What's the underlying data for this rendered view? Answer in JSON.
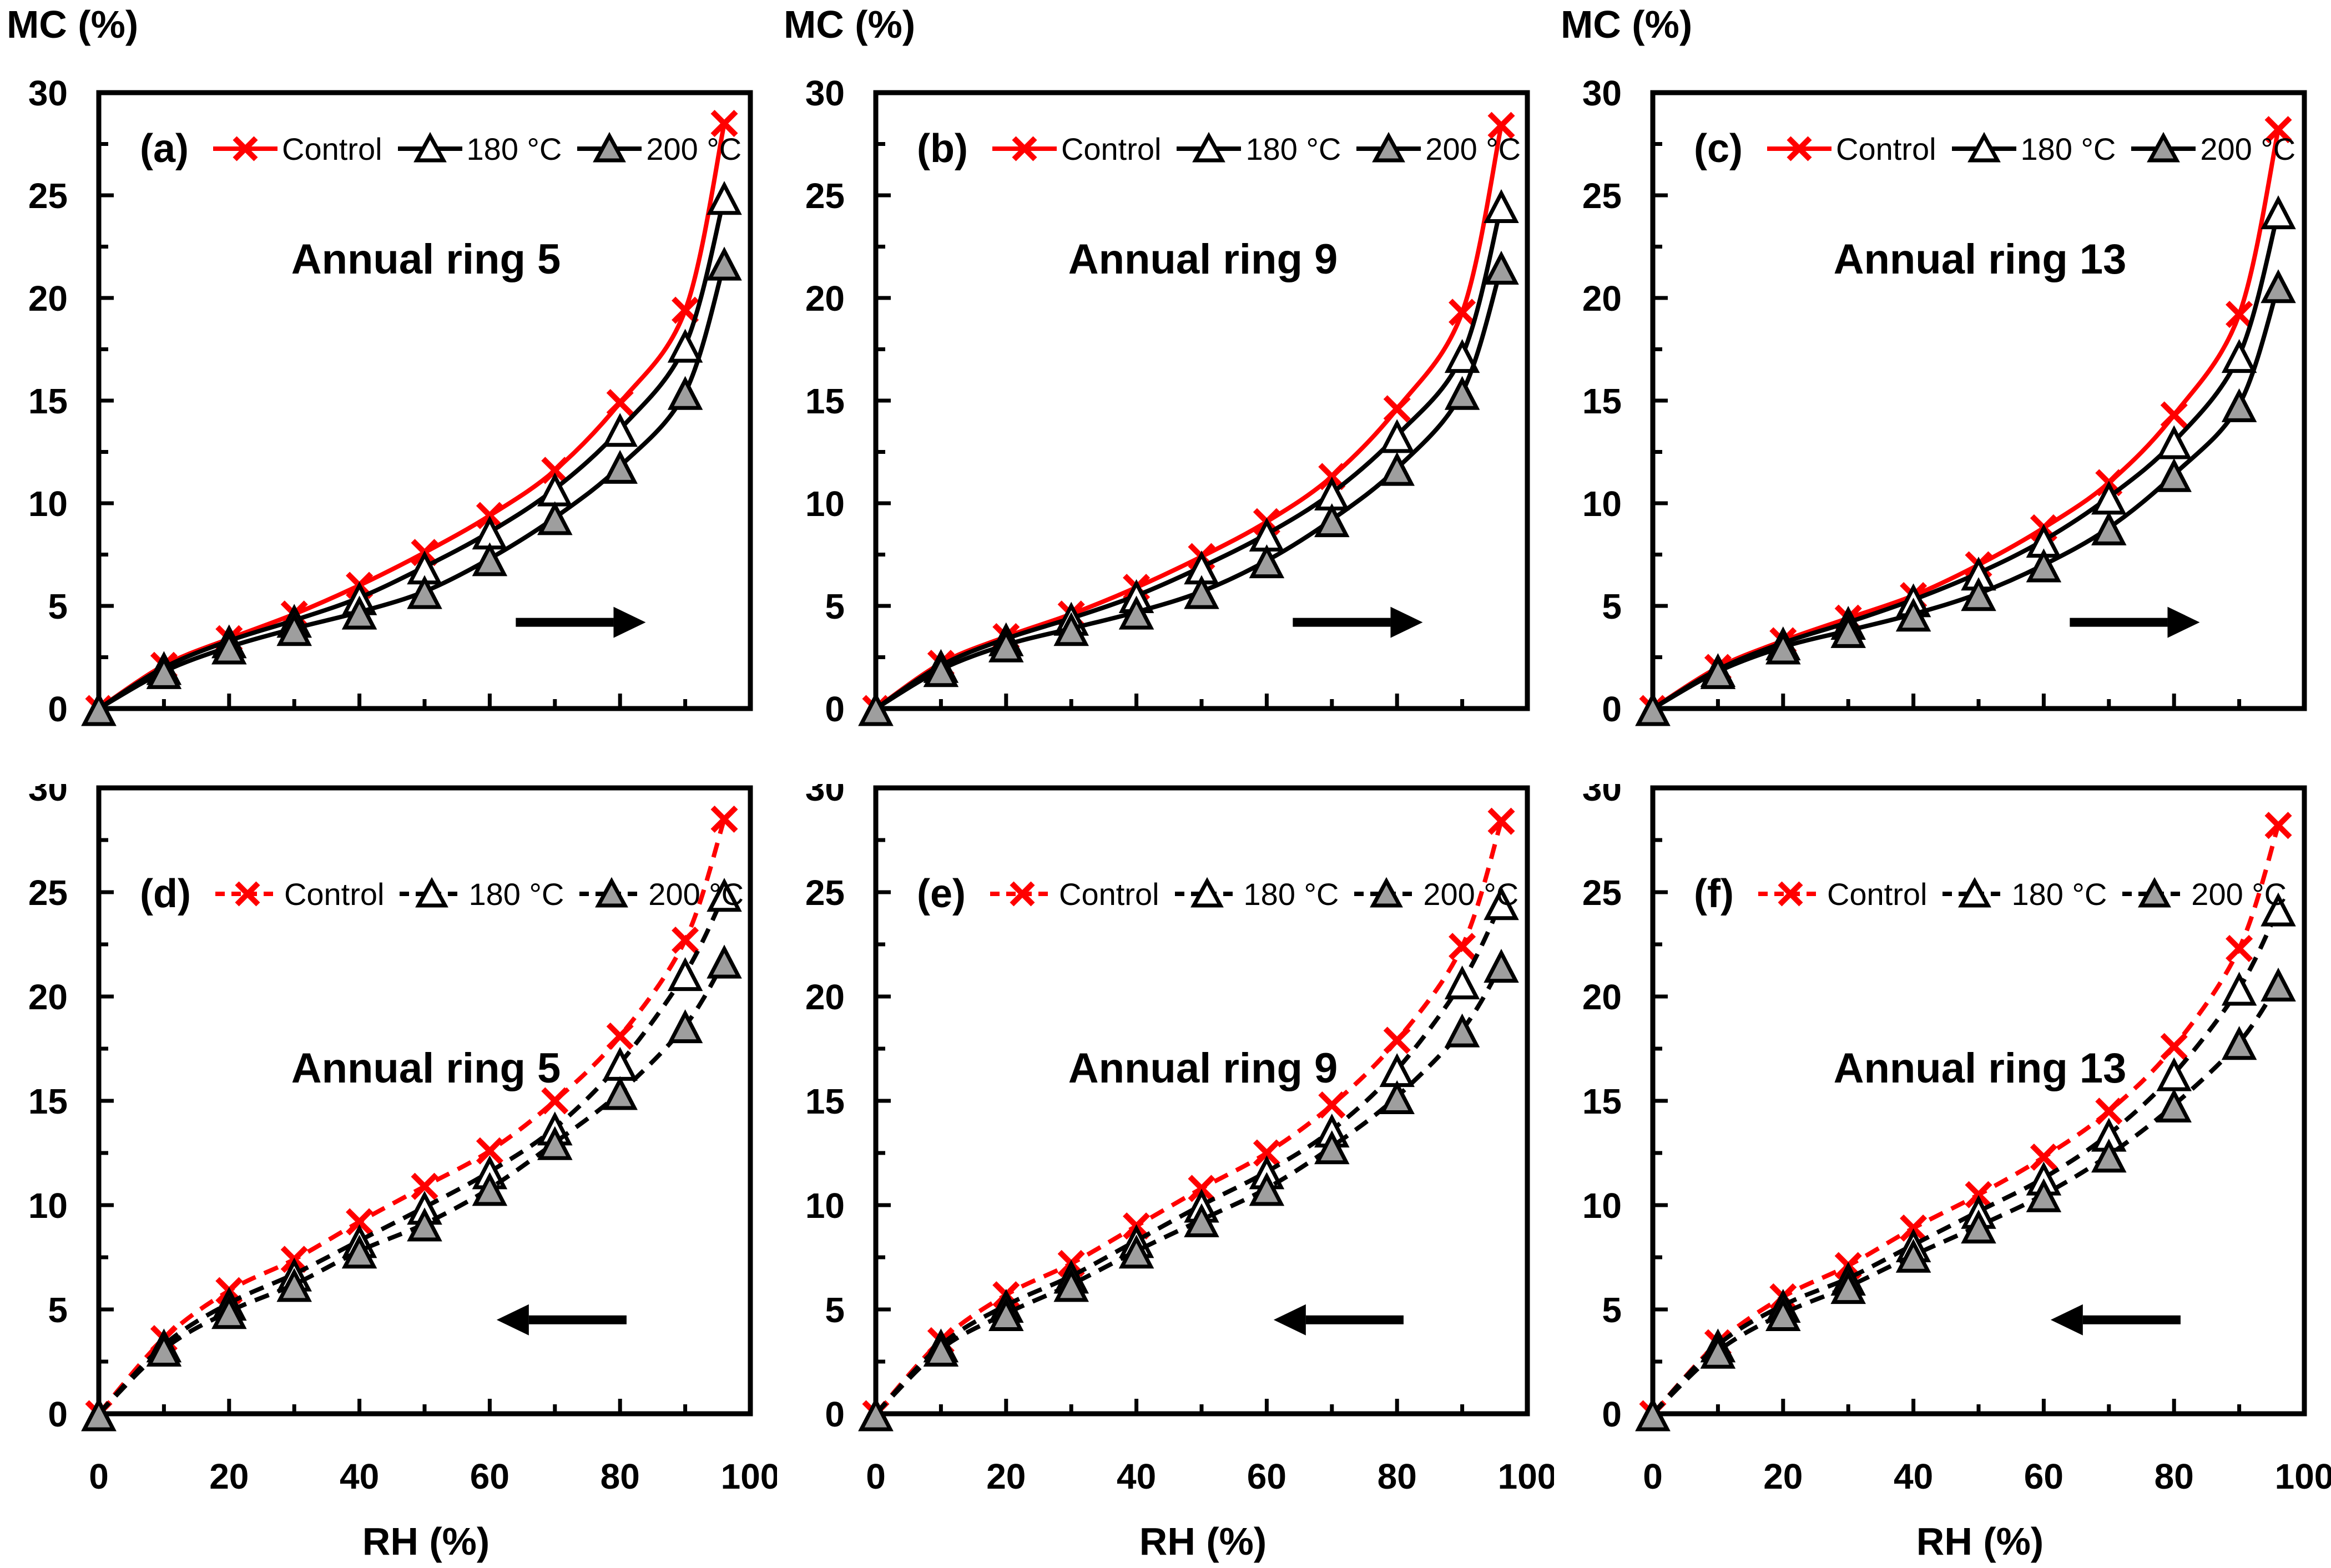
{
  "figure": {
    "y_axis_label": "MC (%)",
    "x_axis_label": "RH (%)",
    "y_ticks": [
      0,
      5,
      10,
      15,
      20,
      25,
      30
    ],
    "x_ticks": [
      0,
      20,
      40,
      60,
      80,
      100
    ],
    "ylim": [
      0,
      30
    ],
    "xlim": [
      0,
      100
    ],
    "grid": "off",
    "colors": {
      "control_line": "#ff0000",
      "treated_line": "#000000",
      "t180_fill": "#ffffff",
      "t200_fill": "#9e9e9e",
      "frame": "#000000",
      "arrow": "#000000"
    },
    "legend": {
      "position": "inside-top",
      "items": [
        {
          "label": "Control"
        },
        {
          "label": "180 °C"
        },
        {
          "label": "200 °C"
        }
      ]
    }
  },
  "chart_data": [
    {
      "type": "line",
      "panel_label": "(a)",
      "title": "Annual ring 5",
      "process": "adsorption",
      "line_style": "solid",
      "arrow_direction": "right",
      "xlabel": "RH (%)",
      "ylabel": "MC (%)",
      "xlim": [
        0,
        100
      ],
      "ylim": [
        0,
        30
      ],
      "x": [
        0,
        10,
        20,
        30,
        40,
        50,
        60,
        70,
        80,
        90,
        96
      ],
      "series": [
        {
          "name": "Control",
          "values": [
            0,
            2.1,
            3.4,
            4.6,
            6.0,
            7.6,
            9.4,
            11.6,
            14.9,
            19.4,
            28.5
          ]
        },
        {
          "name": "180 °C",
          "values": [
            0,
            2.0,
            3.3,
            4.3,
            5.4,
            6.9,
            8.6,
            10.7,
            13.6,
            17.7,
            24.9
          ]
        },
        {
          "name": "200 °C",
          "values": [
            0,
            1.8,
            3.0,
            3.9,
            4.7,
            5.7,
            7.3,
            9.3,
            11.8,
            15.4,
            21.7
          ]
        }
      ]
    },
    {
      "type": "line",
      "panel_label": "(b)",
      "title": "Annual ring 9",
      "process": "adsorption",
      "line_style": "solid",
      "arrow_direction": "right",
      "xlabel": "RH (%)",
      "ylabel": "MC (%)",
      "xlim": [
        0,
        100
      ],
      "ylim": [
        0,
        30
      ],
      "x": [
        0,
        10,
        20,
        30,
        40,
        50,
        60,
        70,
        80,
        90,
        96
      ],
      "series": [
        {
          "name": "Control",
          "values": [
            0,
            2.2,
            3.5,
            4.6,
            5.9,
            7.4,
            9.1,
            11.3,
            14.6,
            19.3,
            28.4
          ]
        },
        {
          "name": "180 °C",
          "values": [
            0,
            2.1,
            3.4,
            4.4,
            5.5,
            6.9,
            8.5,
            10.5,
            13.3,
            17.2,
            24.5
          ]
        },
        {
          "name": "200 °C",
          "values": [
            0,
            1.9,
            3.1,
            3.9,
            4.7,
            5.7,
            7.2,
            9.2,
            11.7,
            15.4,
            21.5
          ]
        }
      ]
    },
    {
      "type": "line",
      "panel_label": "(c)",
      "title": "Annual ring 13",
      "process": "adsorption",
      "line_style": "solid",
      "arrow_direction": "right",
      "xlabel": "RH (%)",
      "ylabel": "MC (%)",
      "xlim": [
        0,
        100
      ],
      "ylim": [
        0,
        30
      ],
      "x": [
        0,
        10,
        20,
        30,
        40,
        50,
        60,
        70,
        80,
        90,
        96
      ],
      "series": [
        {
          "name": "Control",
          "values": [
            0,
            2.0,
            3.3,
            4.4,
            5.5,
            7.0,
            8.8,
            11.0,
            14.3,
            19.2,
            28.2
          ]
        },
        {
          "name": "180 °C",
          "values": [
            0,
            1.9,
            3.2,
            4.2,
            5.3,
            6.6,
            8.2,
            10.3,
            13.0,
            17.2,
            24.2
          ]
        },
        {
          "name": "200 °C",
          "values": [
            0,
            1.8,
            3.0,
            3.8,
            4.6,
            5.6,
            7.0,
            8.8,
            11.4,
            14.8,
            20.6
          ]
        }
      ]
    },
    {
      "type": "line",
      "panel_label": "(d)",
      "title": "Annual ring 5",
      "process": "desorption",
      "line_style": "dashed",
      "arrow_direction": "left",
      "xlabel": "RH (%)",
      "ylabel": "MC (%)",
      "xlim": [
        0,
        100
      ],
      "ylim": [
        0,
        30
      ],
      "x": [
        0,
        10,
        20,
        30,
        40,
        50,
        60,
        70,
        80,
        90,
        96
      ],
      "series": [
        {
          "name": "Control",
          "values": [
            0,
            3.6,
            5.9,
            7.4,
            9.2,
            10.9,
            12.6,
            15.0,
            18.1,
            22.7,
            28.5
          ]
        },
        {
          "name": "180 °C",
          "values": [
            0,
            3.3,
            5.3,
            6.7,
            8.3,
            9.9,
            11.6,
            13.7,
            16.8,
            21.1,
            24.9
          ]
        },
        {
          "name": "200 °C",
          "values": [
            0,
            3.1,
            4.9,
            6.2,
            7.8,
            9.1,
            10.8,
            13.0,
            15.4,
            18.6,
            21.7
          ]
        }
      ]
    },
    {
      "type": "line",
      "panel_label": "(e)",
      "title": "Annual ring 9",
      "process": "desorption",
      "line_style": "dashed",
      "arrow_direction": "left",
      "xlabel": "RH (%)",
      "ylabel": "MC (%)",
      "xlim": [
        0,
        100
      ],
      "ylim": [
        0,
        30
      ],
      "x": [
        0,
        10,
        20,
        30,
        40,
        50,
        60,
        70,
        80,
        90,
        96
      ],
      "series": [
        {
          "name": "Control",
          "values": [
            0,
            3.5,
            5.7,
            7.2,
            9.0,
            10.8,
            12.5,
            14.8,
            17.9,
            22.4,
            28.4
          ]
        },
        {
          "name": "180 °C",
          "values": [
            0,
            3.3,
            5.2,
            6.6,
            8.3,
            10.0,
            11.6,
            13.6,
            16.5,
            20.7,
            24.5
          ]
        },
        {
          "name": "200 °C",
          "values": [
            0,
            3.1,
            4.8,
            6.2,
            7.8,
            9.3,
            10.8,
            12.8,
            15.2,
            18.4,
            21.5
          ]
        }
      ]
    },
    {
      "type": "line",
      "panel_label": "(f)",
      "title": "Annual ring 13",
      "process": "desorption",
      "line_style": "dashed",
      "arrow_direction": "left",
      "xlabel": "RH (%)",
      "ylabel": "MC (%)",
      "xlim": [
        0,
        100
      ],
      "ylim": [
        0,
        30
      ],
      "x": [
        0,
        10,
        20,
        30,
        40,
        50,
        60,
        70,
        80,
        90,
        96
      ],
      "series": [
        {
          "name": "Control",
          "values": [
            0,
            3.4,
            5.6,
            7.1,
            8.9,
            10.5,
            12.3,
            14.5,
            17.6,
            22.3,
            28.2
          ]
        },
        {
          "name": "180 °C",
          "values": [
            0,
            3.3,
            5.2,
            6.5,
            8.1,
            9.7,
            11.3,
            13.4,
            16.3,
            20.4,
            24.2
          ]
        },
        {
          "name": "200 °C",
          "values": [
            0,
            3.0,
            4.8,
            6.1,
            7.6,
            9.0,
            10.5,
            12.4,
            14.8,
            17.8,
            20.6
          ]
        }
      ]
    }
  ]
}
